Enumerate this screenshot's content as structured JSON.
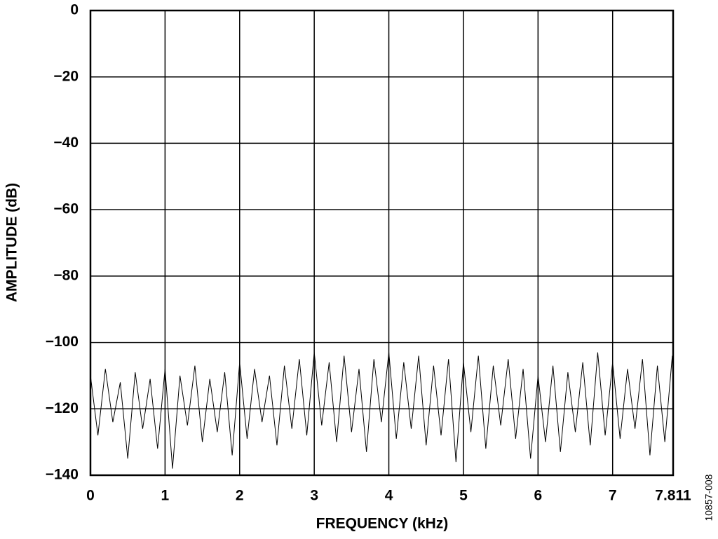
{
  "chart_data": {
    "type": "line",
    "xlabel": "FREQUENCY (kHz)",
    "ylabel": "AMPLITUDE (dB)",
    "note": "10857-008",
    "x": [
      0,
      0.1,
      0.2,
      0.3,
      0.4,
      0.5,
      0.6,
      0.7,
      0.8,
      0.9,
      1,
      1.1,
      1.2,
      1.3,
      1.4,
      1.5,
      1.6,
      1.7,
      1.8,
      1.9,
      2,
      2.1,
      2.2,
      2.3,
      2.4,
      2.5,
      2.6,
      2.7,
      2.8,
      2.9,
      3,
      3.1,
      3.2,
      3.3,
      3.4,
      3.5,
      3.6,
      3.7,
      3.8,
      3.9,
      4,
      4.1,
      4.2,
      4.3,
      4.4,
      4.5,
      4.6,
      4.7,
      4.8,
      4.9,
      5,
      5.1,
      5.2,
      5.3,
      5.4,
      5.5,
      5.6,
      5.7,
      5.8,
      5.9,
      6,
      6.1,
      6.2,
      6.3,
      6.4,
      6.5,
      6.6,
      6.7,
      6.8,
      6.9,
      7,
      7.1,
      7.2,
      7.3,
      7.4,
      7.5,
      7.6,
      7.7,
      7.8,
      7.811
    ],
    "series": [
      {
        "name": "Amplitude",
        "color": "#000000",
        "values": [
          -110,
          -128,
          -108,
          -124,
          -112,
          -135,
          -109,
          -126,
          -111,
          -132,
          -108,
          -138,
          -110,
          -125,
          -107,
          -130,
          -111,
          -127,
          -109,
          -134,
          -106,
          -129,
          -108,
          -124,
          -110,
          -131,
          -107,
          -126,
          -105,
          -128,
          -103,
          -125,
          -106,
          -130,
          -104,
          -127,
          -108,
          -133,
          -105,
          -124,
          -103,
          -129,
          -106,
          -126,
          -104,
          -131,
          -107,
          -128,
          -105,
          -136,
          -106,
          -127,
          -104,
          -132,
          -107,
          -125,
          -105,
          -129,
          -108,
          -135,
          -110,
          -130,
          -107,
          -133,
          -109,
          -127,
          -106,
          -131,
          -103,
          -128,
          -106,
          -129,
          -108,
          -126,
          -105,
          -134,
          -107,
          -130,
          -104,
          -112
        ]
      }
    ],
    "xlim": [
      0,
      7.811
    ],
    "xticks": [
      0,
      1,
      2,
      3,
      4,
      5,
      6,
      7,
      7.811
    ],
    "ylim": [
      -140,
      0
    ],
    "yticks": [
      0,
      {
        "value": -20,
        "label": "−20"
      },
      {
        "value": -40,
        "label": "−40"
      },
      {
        "value": -60,
        "label": "−60"
      },
      {
        "value": -80,
        "label": "−80"
      },
      {
        "value": -100,
        "label": "−100"
      },
      {
        "value": -120,
        "label": "−120"
      },
      {
        "value": -140,
        "label": "−140"
      }
    ],
    "grid": true
  }
}
